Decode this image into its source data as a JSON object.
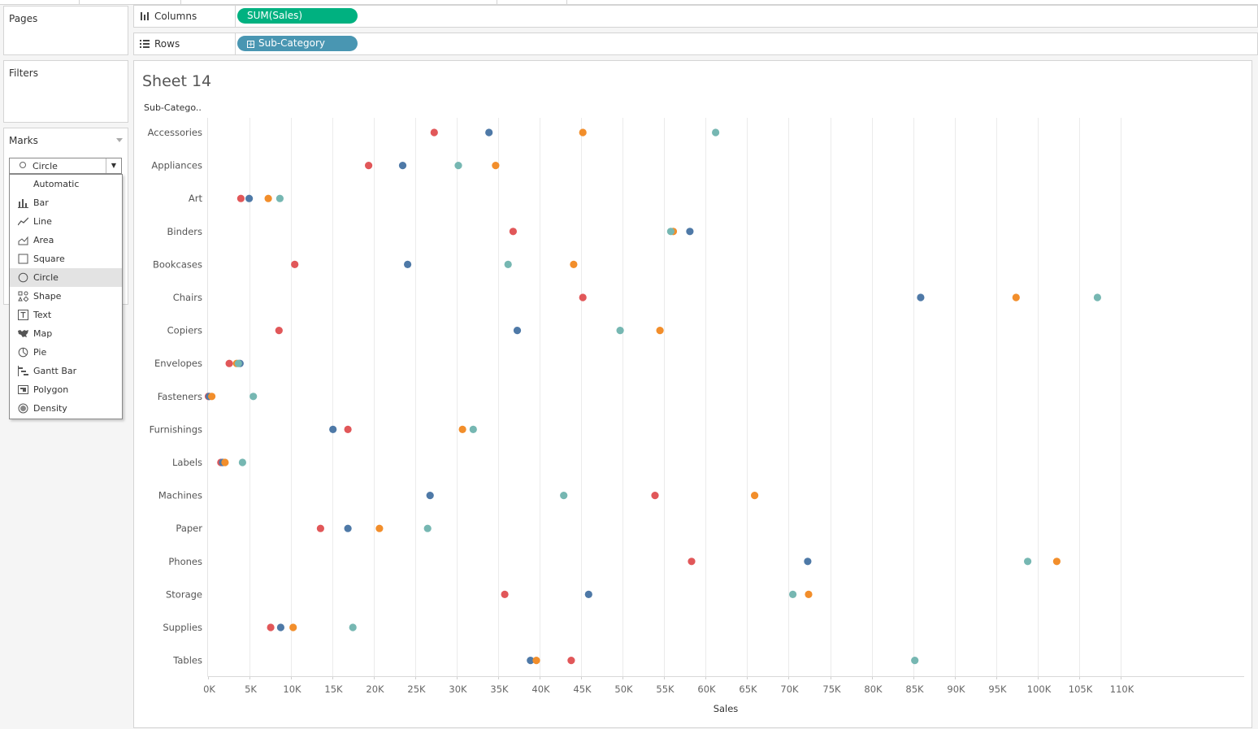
{
  "cards": {
    "pages_title": "Pages",
    "filters_title": "Filters",
    "marks_title": "Marks",
    "mark_type_value": "Circle"
  },
  "shelves": {
    "columns_label": "Columns",
    "columns_pill": "SUM(Sales)",
    "rows_label": "Rows",
    "rows_pill": "Sub-Category"
  },
  "mark_type_options": [
    "Automatic",
    "Bar",
    "Line",
    "Area",
    "Square",
    "Circle",
    "Shape",
    "Text",
    "Map",
    "Pie",
    "Gantt Bar",
    "Polygon",
    "Density"
  ],
  "mark_type_selected": "Circle",
  "colors": {
    "red": "#e15759",
    "blue": "#4e79a7",
    "orange": "#f28e2b",
    "teal": "#76b7b2",
    "columns_pill": "#00b180",
    "rows_pill": "#4996b2"
  },
  "chart_data": {
    "type": "scatter",
    "title": "Sheet 14",
    "row_header": "Sub-Catego..",
    "xlabel": "Sales",
    "x_ticks": [
      "0K",
      "5K",
      "10K",
      "15K",
      "20K",
      "25K",
      "30K",
      "35K",
      "40K",
      "45K",
      "50K",
      "55K",
      "60K",
      "65K",
      "70K",
      "75K",
      "80K",
      "85K",
      "90K",
      "95K",
      "100K",
      "105K",
      "110K"
    ],
    "xlim": [
      0,
      110000
    ],
    "grid": "vertical",
    "categories": [
      "Accessories",
      "Appliances",
      "Art",
      "Binders",
      "Bookcases",
      "Chairs",
      "Copiers",
      "Envelopes",
      "Fasteners",
      "Furnishings",
      "Labels",
      "Machines",
      "Paper",
      "Phones",
      "Storage",
      "Supplies",
      "Tables"
    ],
    "series": [
      {
        "color": "#e15759",
        "values": [
          27300,
          19400,
          4000,
          36800,
          10500,
          45200,
          8600,
          2600,
          100,
          16900,
          1600,
          53900,
          13600,
          58300,
          35800,
          7600,
          43800
        ]
      },
      {
        "color": "#4e79a7",
        "values": [
          33900,
          23500,
          5000,
          58100,
          24100,
          85900,
          37300,
          3900,
          200,
          15100,
          1800,
          26800,
          16900,
          72300,
          45900,
          8800,
          38900
        ]
      },
      {
        "color": "#f28e2b",
        "values": [
          45200,
          34700,
          7300,
          56100,
          44100,
          97400,
          54500,
          3500,
          500,
          30700,
          2100,
          65900,
          20700,
          102300,
          72400,
          10300,
          39600
        ]
      },
      {
        "color": "#76b7b2",
        "values": [
          61200,
          30200,
          8700,
          55800,
          36200,
          107200,
          49700,
          3700,
          5500,
          32000,
          4200,
          42900,
          26500,
          98800,
          70500,
          17500,
          85200
        ]
      }
    ]
  }
}
